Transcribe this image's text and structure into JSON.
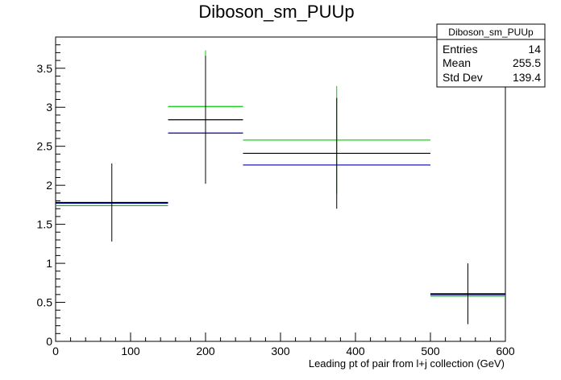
{
  "chart_data": {
    "type": "histogram",
    "title": "Diboson_sm_PUUp",
    "xlabel": "Leading pt of pair from l+j collection (GeV)",
    "ylabel": "",
    "xlim": [
      0,
      600
    ],
    "ylim": [
      0,
      3.9
    ],
    "x_ticks": [
      0,
      100,
      200,
      300,
      400,
      500,
      600
    ],
    "y_ticks": [
      0,
      0.5,
      1,
      1.5,
      2,
      2.5,
      3,
      3.5
    ],
    "x_tick_labels": [
      "0",
      "100",
      "200",
      "300",
      "400",
      "500",
      "600"
    ],
    "y_tick_labels": [
      "0",
      "0.5",
      "1",
      "1.5",
      "2",
      "2.5",
      "3",
      "3.5"
    ],
    "grid": false,
    "bins": [
      {
        "low": 0,
        "high": 150,
        "center": 75
      },
      {
        "low": 150,
        "high": 250,
        "center": 200
      },
      {
        "low": 250,
        "high": 500,
        "center": 375
      },
      {
        "low": 500,
        "high": 600,
        "center": 550
      }
    ],
    "series": [
      {
        "color": "#000000",
        "values": [
          1.78,
          2.84,
          2.41,
          0.61
        ],
        "errors": [
          0.5,
          0.82,
          0.71,
          0.39
        ]
      },
      {
        "color": "#00cc00",
        "values": [
          1.74,
          3.01,
          2.58,
          0.58
        ],
        "errors": [
          null,
          0.72,
          0.69,
          null
        ]
      },
      {
        "color": "#0000aa",
        "values": [
          1.77,
          2.67,
          2.26,
          0.6
        ],
        "errors": [
          null,
          null,
          null,
          null
        ]
      }
    ],
    "stats_box": {
      "name": "Diboson_sm_PUUp",
      "rows": [
        {
          "label": "Entries",
          "value": "14"
        },
        {
          "label": "Mean",
          "value": "255.5"
        },
        {
          "label": "Std Dev",
          "value": "139.4"
        }
      ]
    }
  }
}
